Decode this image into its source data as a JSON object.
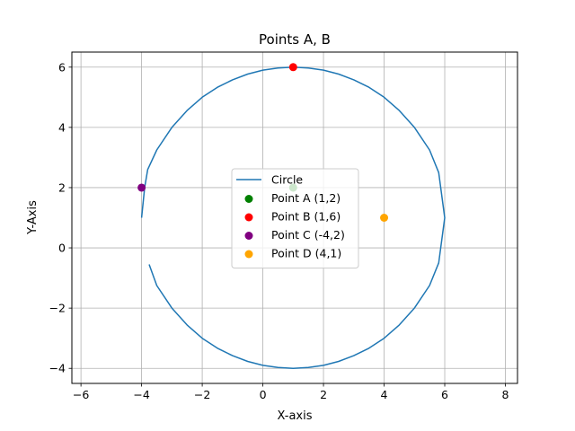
{
  "chart_data": {
    "type": "scatter",
    "title": "Points A, B",
    "xlabel": "X-axis",
    "ylabel": "Y-Axis",
    "xlim": [
      -6.3,
      8.4
    ],
    "ylim": [
      -4.5,
      6.5
    ],
    "xticks": [
      -6,
      -4,
      -2,
      0,
      2,
      4,
      6,
      8
    ],
    "yticks": [
      -4,
      -2,
      0,
      2,
      4,
      6
    ],
    "xtick_labels": [
      "−6",
      "−4",
      "−2",
      "0",
      "2",
      "4",
      "6",
      "8"
    ],
    "ytick_labels": [
      "−4",
      "−2",
      "0",
      "2",
      "4",
      "6"
    ],
    "grid": true,
    "legend_position": "center",
    "series": [
      {
        "name": "Circle",
        "kind": "line",
        "color": "#1f77b4",
        "points": [
          [
            -4.0,
            1.0
          ],
          [
            -3.9,
            2.0
          ],
          [
            -3.8,
            2.6
          ],
          [
            -3.5,
            3.25
          ],
          [
            -3.0,
            4.0
          ],
          [
            -2.5,
            4.56
          ],
          [
            -2.0,
            5.0
          ],
          [
            -1.5,
            5.33
          ],
          [
            -1.0,
            5.58
          ],
          [
            -0.5,
            5.77
          ],
          [
            0.0,
            5.9
          ],
          [
            0.5,
            5.97
          ],
          [
            1.0,
            6.0
          ],
          [
            1.5,
            5.97
          ],
          [
            2.0,
            5.9
          ],
          [
            2.5,
            5.77
          ],
          [
            3.0,
            5.58
          ],
          [
            3.5,
            5.33
          ],
          [
            4.0,
            5.0
          ],
          [
            4.5,
            4.56
          ],
          [
            5.0,
            4.0
          ],
          [
            5.5,
            3.25
          ],
          [
            5.8,
            2.5
          ],
          [
            6.0,
            1.0
          ],
          [
            5.8,
            -0.5
          ],
          [
            5.5,
            -1.25
          ],
          [
            5.0,
            -2.0
          ],
          [
            4.5,
            -2.56
          ],
          [
            4.0,
            -3.0
          ],
          [
            3.5,
            -3.33
          ],
          [
            3.0,
            -3.58
          ],
          [
            2.5,
            -3.77
          ],
          [
            2.0,
            -3.9
          ],
          [
            1.5,
            -3.97
          ],
          [
            1.0,
            -4.0
          ],
          [
            0.5,
            -3.97
          ],
          [
            0.0,
            -3.9
          ],
          [
            -0.5,
            -3.77
          ],
          [
            -1.0,
            -3.58
          ],
          [
            -1.5,
            -3.33
          ],
          [
            -2.0,
            -3.0
          ],
          [
            -2.5,
            -2.56
          ],
          [
            -3.0,
            -2.0
          ],
          [
            -3.5,
            -1.25
          ],
          [
            -3.75,
            -0.55
          ]
        ]
      },
      {
        "name": "Point A (1,2)",
        "kind": "point",
        "color": "#008000",
        "points": [
          [
            1,
            2
          ]
        ]
      },
      {
        "name": "Point B (1,6)",
        "kind": "point",
        "color": "#ff0000",
        "points": [
          [
            1,
            6
          ]
        ]
      },
      {
        "name": "Point C (-4,2)",
        "kind": "point",
        "color": "#800080",
        "points": [
          [
            -4,
            2
          ]
        ]
      },
      {
        "name": "Point D (4,1)",
        "kind": "point",
        "color": "#ffa500",
        "points": [
          [
            4,
            1
          ]
        ]
      }
    ]
  }
}
